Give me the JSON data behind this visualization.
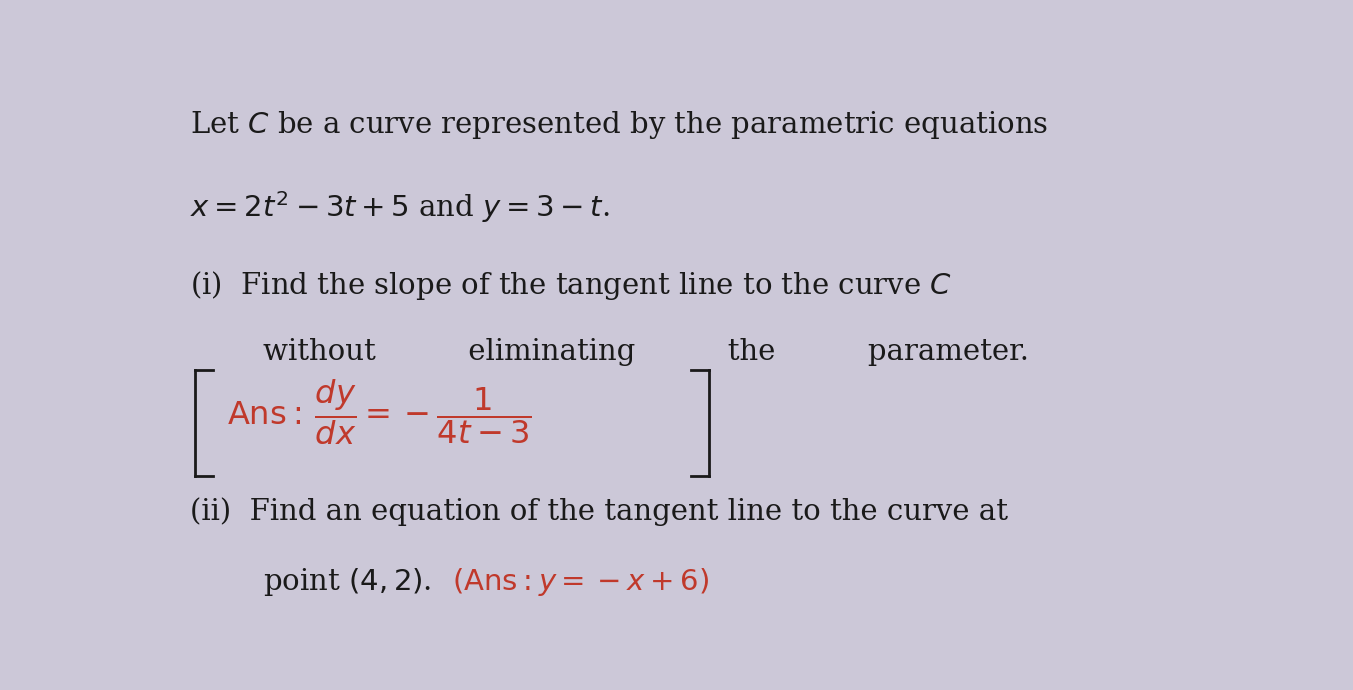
{
  "background_color": "#ccc8d8",
  "text_color_black": "#1a1a1a",
  "text_color_red": "#c0392b",
  "figsize": [
    13.53,
    6.9
  ],
  "dpi": 100
}
